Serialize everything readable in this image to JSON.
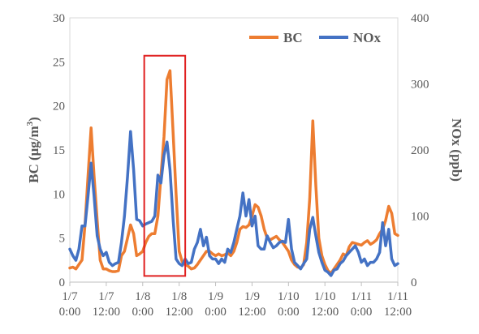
{
  "chart_data": {
    "type": "line",
    "x_ticks": [
      {
        "line1": "1/7",
        "line2": "0:00",
        "t": 0
      },
      {
        "line1": "1/7",
        "line2": "12:00",
        "t": 12
      },
      {
        "line1": "1/8",
        "line2": "0:00",
        "t": 24
      },
      {
        "line1": "1/8",
        "line2": "12:00",
        "t": 36
      },
      {
        "line1": "1/9",
        "line2": "0:00",
        "t": 48
      },
      {
        "line1": "1/9",
        "line2": "12:00",
        "t": 60
      },
      {
        "line1": "1/10",
        "line2": "0:00",
        "t": 72
      },
      {
        "line1": "1/10",
        "line2": "12:00",
        "t": 84
      },
      {
        "line1": "1/11",
        "line2": "0:00",
        "t": 96
      },
      {
        "line1": "1/11",
        "line2": "12:00",
        "t": 108
      }
    ],
    "x_range": [
      0,
      108
    ],
    "y_left": {
      "label_main": "BC (μg/m",
      "label_sup": "3",
      "label_end": ")",
      "range": [
        0,
        30
      ],
      "ticks": [
        "0",
        "5",
        "10",
        "15",
        "20",
        "25",
        "30"
      ]
    },
    "y_right": {
      "label": "NOx (ppb)",
      "range": [
        0,
        400
      ],
      "ticks": [
        "0",
        "100",
        "200",
        "300",
        "400"
      ]
    },
    "legend_position": "top-right",
    "highlight": {
      "t_start": 24.5,
      "t_end": 38,
      "y_left_top": 25.7,
      "y_left_bottom": 0.7,
      "color": "#e02020"
    },
    "series": [
      {
        "name": "BC",
        "axis": "left",
        "color": "#ED7D31",
        "points": [
          [
            0,
            1.6
          ],
          [
            1,
            1.7
          ],
          [
            2,
            1.5
          ],
          [
            3,
            2.0
          ],
          [
            4,
            2.5
          ],
          [
            5,
            6.5
          ],
          [
            6,
            12.0
          ],
          [
            7,
            17.5
          ],
          [
            8,
            12.0
          ],
          [
            9,
            7.0
          ],
          [
            10,
            2.5
          ],
          [
            11,
            1.5
          ],
          [
            12,
            1.5
          ],
          [
            13,
            1.3
          ],
          [
            14,
            1.2
          ],
          [
            15,
            1.2
          ],
          [
            16,
            1.3
          ],
          [
            17,
            3.0
          ],
          [
            18,
            3.5
          ],
          [
            19,
            5.0
          ],
          [
            20,
            6.5
          ],
          [
            21,
            5.5
          ],
          [
            22,
            3.0
          ],
          [
            23,
            3.2
          ],
          [
            24,
            3.5
          ],
          [
            25,
            4.5
          ],
          [
            26,
            5.2
          ],
          [
            27,
            5.5
          ],
          [
            28,
            5.5
          ],
          [
            29,
            7.5
          ],
          [
            30,
            12.0
          ],
          [
            31,
            16.5
          ],
          [
            32,
            23.0
          ],
          [
            33,
            24.0
          ],
          [
            34,
            17.0
          ],
          [
            35,
            10.0
          ],
          [
            36,
            3.5
          ],
          [
            37,
            2.3
          ],
          [
            38,
            2.0
          ],
          [
            39,
            1.8
          ],
          [
            40,
            1.5
          ],
          [
            41,
            1.6
          ],
          [
            42,
            2.0
          ],
          [
            43,
            2.5
          ],
          [
            44,
            3.0
          ],
          [
            45,
            3.5
          ],
          [
            46,
            3.5
          ],
          [
            47,
            3.2
          ],
          [
            48,
            3.0
          ],
          [
            49,
            3.2
          ],
          [
            50,
            3.0
          ],
          [
            51,
            3.1
          ],
          [
            52,
            3.3
          ],
          [
            53,
            3.0
          ],
          [
            54,
            3.5
          ],
          [
            55,
            4.5
          ],
          [
            56,
            6.0
          ],
          [
            57,
            6.3
          ],
          [
            58,
            6.2
          ],
          [
            59,
            6.5
          ],
          [
            60,
            7.5
          ],
          [
            61,
            8.8
          ],
          [
            62,
            8.5
          ],
          [
            63,
            7.5
          ],
          [
            64,
            6.0
          ],
          [
            65,
            5.0
          ],
          [
            66,
            4.8
          ],
          [
            67,
            5.0
          ],
          [
            68,
            5.2
          ],
          [
            69,
            4.8
          ],
          [
            70,
            4.5
          ],
          [
            71,
            4.0
          ],
          [
            72,
            3.5
          ],
          [
            73,
            2.5
          ],
          [
            74,
            2.0
          ],
          [
            75,
            1.7
          ],
          [
            76,
            1.6
          ],
          [
            77,
            2.0
          ],
          [
            78,
            4.5
          ],
          [
            79,
            9.5
          ],
          [
            80,
            18.3
          ],
          [
            81,
            11.0
          ],
          [
            82,
            5.0
          ],
          [
            83,
            3.0
          ],
          [
            84,
            2.0
          ],
          [
            85,
            1.3
          ],
          [
            86,
            1.0
          ],
          [
            87,
            1.5
          ],
          [
            88,
            2.0
          ],
          [
            89,
            2.5
          ],
          [
            90,
            3.2
          ],
          [
            91,
            3.0
          ],
          [
            92,
            4.0
          ],
          [
            93,
            4.5
          ],
          [
            94,
            4.4
          ],
          [
            95,
            4.3
          ],
          [
            96,
            4.2
          ],
          [
            97,
            4.5
          ],
          [
            98,
            4.7
          ],
          [
            99,
            4.3
          ],
          [
            100,
            4.5
          ],
          [
            101,
            4.8
          ],
          [
            102,
            5.5
          ],
          [
            103,
            6.0
          ],
          [
            104,
            7.0
          ],
          [
            105,
            8.6
          ],
          [
            106,
            7.8
          ],
          [
            107,
            5.5
          ],
          [
            108,
            5.3
          ]
        ]
      },
      {
        "name": "NOx",
        "axis": "right",
        "color": "#4472C4",
        "points": [
          [
            0,
            50
          ],
          [
            1,
            40
          ],
          [
            2,
            33
          ],
          [
            3,
            50
          ],
          [
            4,
            85
          ],
          [
            5,
            85
          ],
          [
            6,
            130
          ],
          [
            7,
            180
          ],
          [
            8,
            130
          ],
          [
            9,
            70
          ],
          [
            10,
            50
          ],
          [
            11,
            40
          ],
          [
            12,
            45
          ],
          [
            13,
            30
          ],
          [
            14,
            25
          ],
          [
            15,
            28
          ],
          [
            16,
            30
          ],
          [
            17,
            60
          ],
          [
            18,
            100
          ],
          [
            19,
            160
          ],
          [
            20,
            228
          ],
          [
            21,
            170
          ],
          [
            22,
            95
          ],
          [
            23,
            93
          ],
          [
            24,
            85
          ],
          [
            25,
            88
          ],
          [
            26,
            90
          ],
          [
            27,
            92
          ],
          [
            28,
            100
          ],
          [
            29,
            162
          ],
          [
            30,
            150
          ],
          [
            31,
            192
          ],
          [
            32,
            212
          ],
          [
            33,
            170
          ],
          [
            34,
            95
          ],
          [
            35,
            35
          ],
          [
            36,
            28
          ],
          [
            37,
            25
          ],
          [
            38,
            35
          ],
          [
            39,
            28
          ],
          [
            40,
            30
          ],
          [
            41,
            50
          ],
          [
            42,
            60
          ],
          [
            43,
            80
          ],
          [
            44,
            55
          ],
          [
            45,
            68
          ],
          [
            46,
            40
          ],
          [
            47,
            35
          ],
          [
            48,
            35
          ],
          [
            49,
            28
          ],
          [
            50,
            35
          ],
          [
            51,
            30
          ],
          [
            52,
            50
          ],
          [
            53,
            45
          ],
          [
            54,
            60
          ],
          [
            55,
            80
          ],
          [
            56,
            100
          ],
          [
            57,
            135
          ],
          [
            58,
            100
          ],
          [
            59,
            125
          ],
          [
            60,
            85
          ],
          [
            61,
            100
          ],
          [
            62,
            55
          ],
          [
            63,
            50
          ],
          [
            64,
            50
          ],
          [
            65,
            70
          ],
          [
            66,
            60
          ],
          [
            67,
            52
          ],
          [
            68,
            55
          ],
          [
            69,
            60
          ],
          [
            70,
            62
          ],
          [
            71,
            60
          ],
          [
            72,
            95
          ],
          [
            73,
            50
          ],
          [
            74,
            30
          ],
          [
            75,
            25
          ],
          [
            76,
            20
          ],
          [
            77,
            28
          ],
          [
            78,
            35
          ],
          [
            79,
            80
          ],
          [
            80,
            98
          ],
          [
            81,
            70
          ],
          [
            82,
            45
          ],
          [
            83,
            30
          ],
          [
            84,
            18
          ],
          [
            85,
            15
          ],
          [
            86,
            10
          ],
          [
            87,
            18
          ],
          [
            88,
            20
          ],
          [
            89,
            28
          ],
          [
            90,
            32
          ],
          [
            91,
            40
          ],
          [
            92,
            45
          ],
          [
            93,
            50
          ],
          [
            94,
            55
          ],
          [
            95,
            45
          ],
          [
            96,
            30
          ],
          [
            97,
            35
          ],
          [
            98,
            25
          ],
          [
            99,
            30
          ],
          [
            100,
            30
          ],
          [
            101,
            35
          ],
          [
            102,
            45
          ],
          [
            103,
            90
          ],
          [
            104,
            55
          ],
          [
            105,
            80
          ],
          [
            106,
            35
          ],
          [
            107,
            25
          ],
          [
            108,
            28
          ]
        ]
      }
    ]
  }
}
